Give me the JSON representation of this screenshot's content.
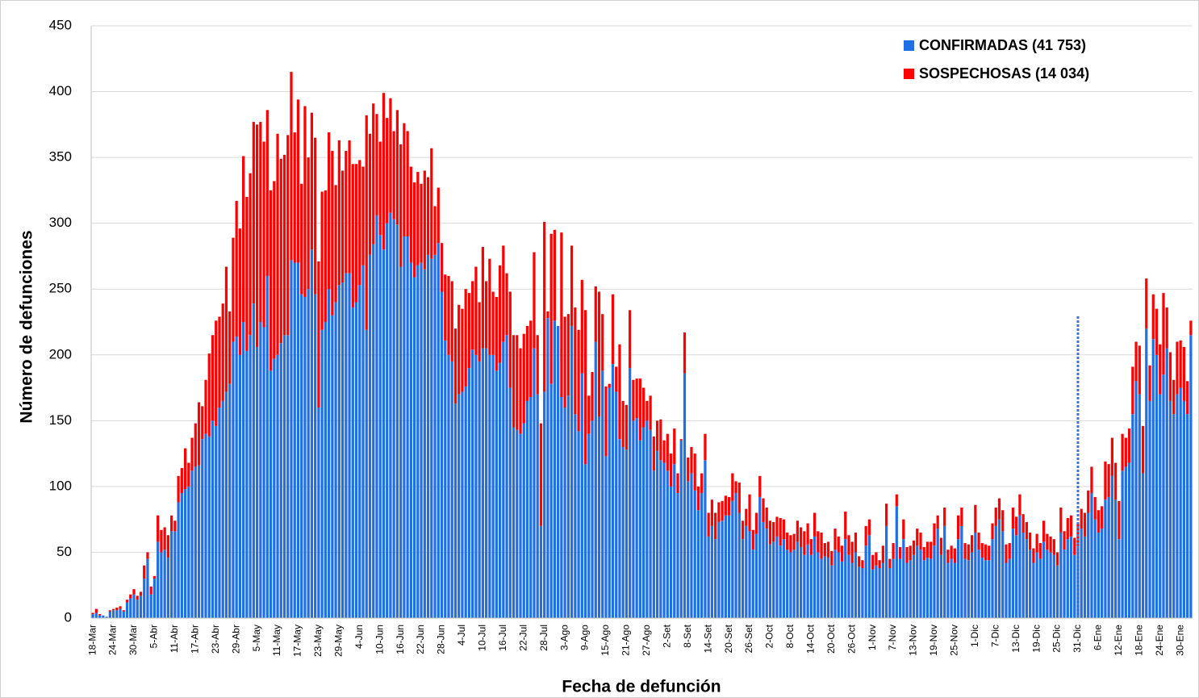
{
  "chart_data": {
    "type": "bar",
    "stacked": true,
    "x_label": "Fecha de defunción",
    "y_label": "Número de defunciones",
    "categories": [
      "18-Mar",
      null,
      null,
      null,
      null,
      null,
      "24-Mar",
      null,
      null,
      null,
      null,
      null,
      "30-Mar",
      null,
      null,
      null,
      null,
      null,
      "5-Abr",
      null,
      null,
      null,
      null,
      null,
      "11-Abr",
      null,
      null,
      null,
      null,
      null,
      "17-Abr",
      null,
      null,
      null,
      null,
      null,
      "23-Abr",
      null,
      null,
      null,
      null,
      null,
      "29-Abr",
      null,
      null,
      null,
      null,
      null,
      "5-May",
      null,
      null,
      null,
      null,
      null,
      "11-May",
      null,
      null,
      null,
      null,
      null,
      "17-May",
      null,
      null,
      null,
      null,
      null,
      "23-May",
      null,
      null,
      null,
      null,
      null,
      "29-May",
      null,
      null,
      null,
      null,
      null,
      "4-Jun",
      null,
      null,
      null,
      null,
      null,
      "10-Jun",
      null,
      null,
      null,
      null,
      null,
      "16-Jun",
      null,
      null,
      null,
      null,
      null,
      "22-Jun",
      null,
      null,
      null,
      null,
      null,
      "28-Jun",
      null,
      null,
      null,
      null,
      null,
      "4-Jul",
      null,
      null,
      null,
      null,
      null,
      "10-Jul",
      null,
      null,
      null,
      null,
      null,
      "16-Jul",
      null,
      null,
      null,
      null,
      null,
      "22-Jul",
      null,
      null,
      null,
      null,
      null,
      "28-Jul",
      null,
      null,
      null,
      null,
      null,
      "3-Ago",
      null,
      null,
      null,
      null,
      null,
      "9-Ago",
      null,
      null,
      null,
      null,
      null,
      "15-Ago",
      null,
      null,
      null,
      null,
      null,
      "21-Ago",
      null,
      null,
      null,
      null,
      null,
      "27-Ago",
      null,
      null,
      null,
      null,
      null,
      "2-Set",
      null,
      null,
      null,
      null,
      null,
      "8-Set",
      null,
      null,
      null,
      null,
      null,
      "14-Set",
      null,
      null,
      null,
      null,
      null,
      "20-Set",
      null,
      null,
      null,
      null,
      null,
      "26-Set",
      null,
      null,
      null,
      null,
      null,
      "2-Oct",
      null,
      null,
      null,
      null,
      null,
      "8-Oct",
      null,
      null,
      null,
      null,
      null,
      "14-Oct",
      null,
      null,
      null,
      null,
      null,
      "20-Oct",
      null,
      null,
      null,
      null,
      null,
      "26-Oct",
      null,
      null,
      null,
      null,
      null,
      "1-Nov",
      null,
      null,
      null,
      null,
      null,
      "7-Nov",
      null,
      null,
      null,
      null,
      null,
      "13-Nov",
      null,
      null,
      null,
      null,
      null,
      "19-Nov",
      null,
      null,
      null,
      null,
      null,
      "25-Nov",
      null,
      null,
      null,
      null,
      null,
      "1-Dic",
      null,
      null,
      null,
      null,
      null,
      "7-Dic",
      null,
      null,
      null,
      null,
      null,
      "13-Dic",
      null,
      null,
      null,
      null,
      null,
      "19-Dic",
      null,
      null,
      null,
      null,
      null,
      "25-Dic",
      null,
      null,
      null,
      null,
      null,
      "31-Dic",
      null,
      null,
      null,
      null,
      null,
      "6-Ene",
      null,
      null,
      null,
      null,
      null,
      "12-Ene",
      null,
      null,
      null,
      null,
      null,
      "18-Ene",
      null,
      null,
      null,
      null,
      null,
      "24-Ene",
      null,
      null,
      null,
      null,
      null,
      "30-Ene",
      null,
      null,
      null
    ],
    "series": [
      {
        "name": "CONFIRMADAS (41 753)",
        "color": "#1f6fe5",
        "values": [
          3,
          4,
          2,
          2,
          1,
          5,
          6,
          6,
          7,
          5,
          12,
          15,
          18,
          14,
          17,
          30,
          45,
          18,
          30,
          58,
          50,
          52,
          46,
          66,
          66,
          88,
          95,
          98,
          100,
          112,
          115,
          116,
          136,
          140,
          138,
          150,
          146,
          160,
          165,
          172,
          178,
          210,
          214,
          200,
          225,
          203,
          215,
          239,
          206,
          225,
          221,
          260,
          188,
          197,
          200,
          209,
          215,
          215,
          272,
          270,
          270,
          246,
          244,
          250,
          280,
          246,
          160,
          219,
          225,
          250,
          230,
          240,
          253,
          255,
          262,
          262,
          236,
          240,
          253,
          268,
          219,
          276,
          284,
          306,
          291,
          280,
          300,
          308,
          303,
          299,
          267,
          290,
          290,
          270,
          259,
          268,
          270,
          265,
          276,
          273,
          276,
          285,
          248,
          211,
          200,
          195,
          163,
          170,
          172,
          176,
          190,
          204,
          200,
          195,
          205,
          205,
          200,
          200,
          188,
          194,
          210,
          215,
          175,
          145,
          143,
          140,
          148,
          165,
          168,
          205,
          170,
          70,
          172,
          228,
          178,
          226,
          222,
          168,
          160,
          169,
          222,
          155,
          142,
          186,
          117,
          140,
          150,
          210,
          153,
          188,
          123,
          175,
          193,
          172,
          136,
          130,
          128,
          190,
          150,
          152,
          135,
          145,
          150,
          143,
          112,
          127,
          120,
          118,
          112,
          100,
          117,
          95,
          135,
          186,
          104,
          110,
          97,
          82,
          95,
          120,
          62,
          70,
          60,
          73,
          74,
          78,
          78,
          89,
          95,
          80,
          60,
          70,
          66,
          52,
          64,
          92,
          73,
          68,
          56,
          58,
          62,
          55,
          60,
          52,
          50,
          52,
          58,
          54,
          48,
          56,
          48,
          62,
          50,
          45,
          47,
          46,
          40,
          52,
          50,
          43,
          60,
          48,
          42,
          50,
          39,
          38,
          55,
          63,
          37,
          40,
          38,
          42,
          70,
          38,
          45,
          85,
          45,
          60,
          42,
          44,
          48,
          55,
          52,
          44,
          46,
          45,
          55,
          68,
          48,
          70,
          42,
          45,
          42,
          60,
          70,
          45,
          44,
          50,
          65,
          52,
          46,
          44,
          44,
          60,
          70,
          75,
          66,
          42,
          45,
          68,
          63,
          78,
          65,
          60,
          52,
          42,
          50,
          45,
          58,
          52,
          50,
          48,
          40,
          65,
          52,
          60,
          62,
          48,
          55,
          68,
          62,
          80,
          95,
          75,
          65,
          68,
          90,
          92,
          108,
          90,
          60,
          112,
          115,
          118,
          155,
          180,
          170,
          110,
          220,
          165,
          212,
          200,
          170,
          185,
          205,
          165,
          155,
          170,
          175,
          165,
          155,
          215
        ]
      },
      {
        "name": "SOSPECHOSAS (14 034)",
        "color": "#ff0000",
        "values": [
          1,
          3,
          1,
          0,
          0,
          1,
          1,
          2,
          2,
          1,
          2,
          3,
          4,
          3,
          3,
          10,
          5,
          6,
          2,
          20,
          17,
          17,
          17,
          12,
          8,
          20,
          19,
          31,
          18,
          25,
          33,
          48,
          25,
          41,
          63,
          65,
          80,
          69,
          74,
          95,
          55,
          79,
          103,
          96,
          126,
          117,
          123,
          138,
          169,
          152,
          141,
          126,
          137,
          135,
          168,
          140,
          137,
          152,
          143,
          99,
          124,
          84,
          145,
          100,
          104,
          119,
          111,
          105,
          100,
          119,
          125,
          89,
          110,
          85,
          93,
          101,
          109,
          105,
          95,
          75,
          163,
          92,
          107,
          77,
          71,
          119,
          80,
          87,
          67,
          87,
          93,
          86,
          80,
          73,
          72,
          71,
          60,
          75,
          59,
          84,
          37,
          42,
          37,
          50,
          60,
          61,
          57,
          68,
          63,
          74,
          57,
          52,
          67,
          45,
          77,
          51,
          73,
          48,
          56,
          74,
          73,
          47,
          73,
          70,
          72,
          65,
          68,
          57,
          58,
          73,
          45,
          78,
          129,
          5,
          114,
          69,
          0,
          125,
          69,
          62,
          61,
          81,
          77,
          71,
          117,
          29,
          37,
          42,
          95,
          43,
          53,
          3,
          53,
          19,
          72,
          35,
          34,
          44,
          31,
          30,
          47,
          30,
          15,
          26,
          26,
          23,
          31,
          17,
          28,
          25,
          27,
          15,
          1,
          31,
          18,
          20,
          28,
          18,
          15,
          20,
          18,
          20,
          20,
          15,
          15,
          15,
          14,
          21,
          9,
          23,
          14,
          13,
          28,
          15,
          16,
          16,
          18,
          16,
          18,
          15,
          15,
          21,
          15,
          13,
          13,
          12,
          16,
          15,
          18,
          16,
          12,
          18,
          16,
          20,
          10,
          12,
          11,
          16,
          12,
          12,
          21,
          15,
          16,
          15,
          8,
          6,
          15,
          12,
          11,
          10,
          6,
          13,
          17,
          7,
          12,
          9,
          9,
          15,
          12,
          11,
          11,
          13,
          13,
          10,
          12,
          13,
          17,
          10,
          13,
          14,
          10,
          10,
          11,
          18,
          14,
          12,
          12,
          13,
          21,
          13,
          11,
          12,
          11,
          12,
          14,
          16,
          16,
          14,
          12,
          16,
          14,
          16,
          14,
          13,
          13,
          11,
          14,
          12,
          16,
          12,
          12,
          12,
          10,
          19,
          14,
          16,
          16,
          13,
          17,
          15,
          18,
          17,
          20,
          17,
          17,
          17,
          29,
          25,
          29,
          28,
          29,
          28,
          22,
          26,
          36,
          30,
          37,
          36,
          38,
          27,
          34,
          35,
          38,
          62,
          31,
          37,
          26,
          40,
          36,
          41,
          25,
          11
        ]
      }
    ],
    "ylim": [
      0,
      450
    ],
    "yticks": [
      0,
      50,
      100,
      150,
      200,
      250,
      300,
      350,
      400,
      450
    ],
    "grid": true,
    "legend": "top-right"
  }
}
